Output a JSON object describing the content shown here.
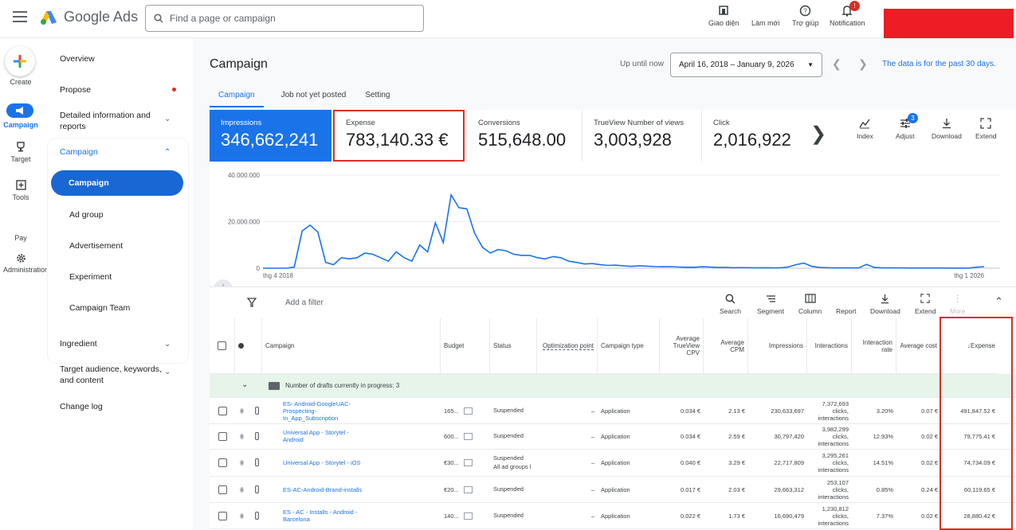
{
  "header": {
    "product": "Google Ads",
    "search_placeholder": "Find a page or campaign",
    "actions": [
      {
        "label": "Giao diện",
        "icon": "appearance-icon"
      },
      {
        "label": "Làm mới",
        "icon": "refresh-icon"
      },
      {
        "label": "Trợ giúp",
        "icon": "help-icon"
      },
      {
        "label": "Notification",
        "icon": "bell-icon",
        "badge": "!"
      }
    ],
    "redacted_color": "#ee1c25"
  },
  "rail": {
    "create": "Create",
    "campaign": "Campaign",
    "target": "Target",
    "tools": "Tools",
    "pay": "Pay",
    "admin": "Administration"
  },
  "nav": {
    "overview": "Overview",
    "propose": "Propose",
    "detailed": "Detailed information and reports",
    "campaign_group": "Campaign",
    "items": [
      "Campaign",
      "Ad group",
      "Advertisement",
      "Experiment",
      "Campaign Team"
    ],
    "ingredient": "Ingredient",
    "audience": "Target audience, keywords, and content",
    "changelog": "Change log"
  },
  "page": {
    "title": "Campaign",
    "up_until": "Up until now",
    "date_range": "April 16, 2018 – January 9, 2026",
    "data_note": "The data is for the past 30 days.",
    "tabs": [
      "Campaign",
      "Job not yet posted",
      "Setting"
    ]
  },
  "metrics": [
    {
      "label": "Impressions",
      "value": "346,662,241"
    },
    {
      "label": "Expense",
      "value": "783,140.33 €"
    },
    {
      "label": "Conversions",
      "value": "515,648.00"
    },
    {
      "label": "TrueView Number of views",
      "value": "3,003,928"
    },
    {
      "label": "Click",
      "value": "2,016,922"
    }
  ],
  "card_tools": [
    "Index",
    "Adjust",
    "Download",
    "Extend"
  ],
  "adjust_badge": "3",
  "chart_data": {
    "type": "line",
    "y_ticks": [
      "40.000.000",
      "20.000.000",
      "0"
    ],
    "x_start_label": "thg 4 2018",
    "x_end_label": "thg 1 2026",
    "ylim": [
      0,
      40000000
    ],
    "values": [
      0,
      0,
      0,
      0,
      500000,
      16000000,
      18500000,
      15500000,
      2500000,
      1500000,
      4500000,
      4000000,
      4500000,
      6500000,
      6000000,
      4500000,
      3000000,
      7000000,
      4500000,
      3000000,
      10000000,
      7000000,
      19500000,
      11000000,
      31500000,
      26000000,
      25500000,
      15000000,
      9000000,
      6500000,
      8000000,
      7500000,
      6000000,
      5500000,
      5500000,
      4500000,
      4000000,
      5000000,
      4500000,
      3000000,
      2500000,
      1800000,
      2000000,
      1500000,
      1200000,
      1300000,
      1000000,
      800000,
      1000000,
      900000,
      700000,
      600000,
      700000,
      500000,
      400000,
      400000,
      600000,
      500000,
      300000,
      300000,
      200000,
      250000,
      200000,
      150000,
      200000,
      150000,
      120000,
      500000,
      1500000,
      2200000,
      800000,
      300000,
      200000,
      150000,
      120000,
      100000,
      100000,
      1600000,
      300000,
      150000,
      120000,
      100000,
      100000,
      80000,
      80000,
      60000,
      80000,
      60000,
      50000,
      50000,
      50000,
      400000,
      700000
    ],
    "color": "#1a73e8"
  },
  "toolbar": {
    "filter": "Add a filter",
    "buttons": [
      "Search",
      "Segment",
      "Column",
      "Report",
      "Download",
      "Extend",
      "More"
    ]
  },
  "table": {
    "columns": [
      "Campaign",
      "Budget",
      "Status",
      "Optimization point",
      "Campaign type",
      "Average TrueView CPV",
      "Average CPM",
      "Impressions",
      "Interactions",
      "Interaction rate",
      "Average cost",
      "Expense"
    ],
    "draft_label": "Number of drafts currently in progress: 3",
    "rows": [
      {
        "campaign": "ES- Android-GoogleUAC-Prospecting-In_App_Subscription",
        "budget": "165...",
        "status": "Suspended",
        "status2": "",
        "opt": "–",
        "type": "Application",
        "cpv": "0.034 €",
        "cpm": "2.13 €",
        "impr": "230,633,697",
        "inter1": "7,372,693",
        "inter2": "clicks,",
        "inter3": "interactions",
        "rate": "3.20%",
        "avg": "0.07 €",
        "exp": "491,847.52 €"
      },
      {
        "campaign": "Universal App - Storytel - Android",
        "budget": "600...",
        "status": "Suspended",
        "status2": "",
        "opt": "–",
        "type": "Application",
        "cpv": "0.034 €",
        "cpm": "2.59 €",
        "impr": "30,797,420",
        "inter1": "3,982,299",
        "inter2": "clicks,",
        "inter3": "interactions",
        "rate": "12.93%",
        "avg": "0.02 €",
        "exp": "79,775.41 €"
      },
      {
        "campaign": "Universal App - Storytel - iOS",
        "budget": "€30...",
        "status": "Suspended",
        "status2": "All ad groups l",
        "opt": "–",
        "type": "Application",
        "cpv": "0.040 €",
        "cpm": "3.29 €",
        "impr": "22,717,809",
        "inter1": "3,295,261",
        "inter2": "clicks,",
        "inter3": "interactions",
        "rate": "14.51%",
        "avg": "0.02 €",
        "exp": "74,734.09 €"
      },
      {
        "campaign": "ES-AC-Android-Brand-installs",
        "budget": "€20...",
        "status": "Suspended",
        "status2": "",
        "opt": "–",
        "type": "Application",
        "cpv": "0.017 €",
        "cpm": "2.03 €",
        "impr": "29,663,312",
        "inter1": "253,107",
        "inter2": "clicks,",
        "inter3": "interactions",
        "rate": "0.85%",
        "avg": "0.24 €",
        "exp": "60,119.65 €"
      },
      {
        "campaign": "ES - AC - Installs - Android - Barcelona",
        "budget": "140...",
        "status": "Suspended",
        "status2": "",
        "opt": "–",
        "type": "Application",
        "cpv": "0.022 €",
        "cpm": "1.73 €",
        "impr": "16,690,479",
        "inter1": "1,230,812",
        "inter2": "clicks,",
        "inter3": "interactions",
        "rate": "7.37%",
        "avg": "0.02 €",
        "exp": "28,880.42 €"
      }
    ]
  }
}
